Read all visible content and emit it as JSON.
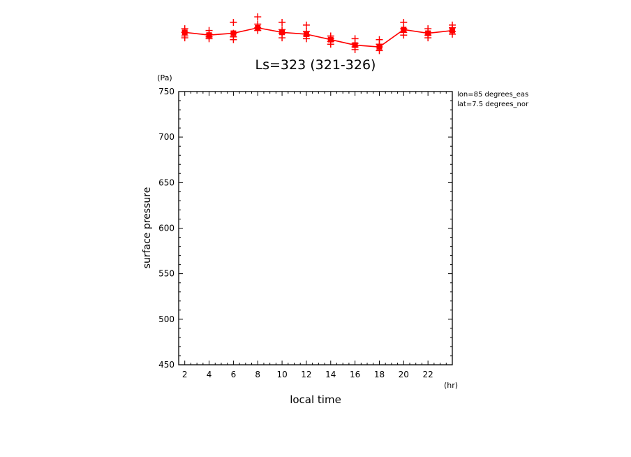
{
  "chart_data": {
    "type": "scatter",
    "title": "Ls=323 (321-326)",
    "xlabel": "local time",
    "ylabel": "surface pressure",
    "x_unit": "(hr)",
    "y_unit": "(Pa)",
    "xlim": [
      1.5,
      24
    ],
    "ylim": [
      450,
      750
    ],
    "x_ticks": [
      2,
      4,
      6,
      8,
      10,
      12,
      14,
      16,
      18,
      20,
      22
    ],
    "y_ticks": [
      450,
      500,
      550,
      600,
      650,
      700,
      750
    ],
    "annotations": [
      "lon=85 degrees_eas",
      "lat=7.5 degrees_nor"
    ],
    "colors": {
      "series": "#ff0000",
      "axes": "#000000"
    },
    "series": [
      {
        "style": "line-with-square-markers",
        "x": [
          2,
          4,
          6,
          8,
          10,
          12,
          14,
          16,
          18,
          20,
          22,
          24
        ],
        "y": [
          815,
          812,
          814,
          820,
          815,
          813,
          807,
          801,
          799,
          818,
          814,
          817
        ]
      },
      {
        "style": "plus-markers",
        "points": [
          [
            2,
            819
          ],
          [
            2,
            815
          ],
          [
            2,
            811
          ],
          [
            2,
            809
          ],
          [
            4,
            817
          ],
          [
            4,
            813
          ],
          [
            4,
            810
          ],
          [
            4,
            808
          ],
          [
            6,
            826
          ],
          [
            6,
            814
          ],
          [
            6,
            810
          ],
          [
            6,
            807
          ],
          [
            8,
            832
          ],
          [
            8,
            824
          ],
          [
            8,
            820
          ],
          [
            8,
            817
          ],
          [
            10,
            826
          ],
          [
            10,
            818
          ],
          [
            10,
            814
          ],
          [
            10,
            809
          ],
          [
            12,
            823
          ],
          [
            12,
            816
          ],
          [
            12,
            811
          ],
          [
            12,
            808
          ],
          [
            14,
            811
          ],
          [
            14,
            808
          ],
          [
            14,
            805
          ],
          [
            14,
            802
          ],
          [
            16,
            808
          ],
          [
            16,
            803
          ],
          [
            16,
            799
          ],
          [
            16,
            796
          ],
          [
            18,
            807
          ],
          [
            18,
            802
          ],
          [
            18,
            799
          ],
          [
            18,
            795
          ],
          [
            20,
            826
          ],
          [
            20,
            819
          ],
          [
            20,
            815
          ],
          [
            20,
            812
          ],
          [
            22,
            819
          ],
          [
            22,
            815
          ],
          [
            22,
            812
          ],
          [
            22,
            809
          ],
          [
            24,
            823
          ],
          [
            24,
            820
          ],
          [
            24,
            816
          ],
          [
            24,
            813
          ]
        ]
      }
    ]
  }
}
